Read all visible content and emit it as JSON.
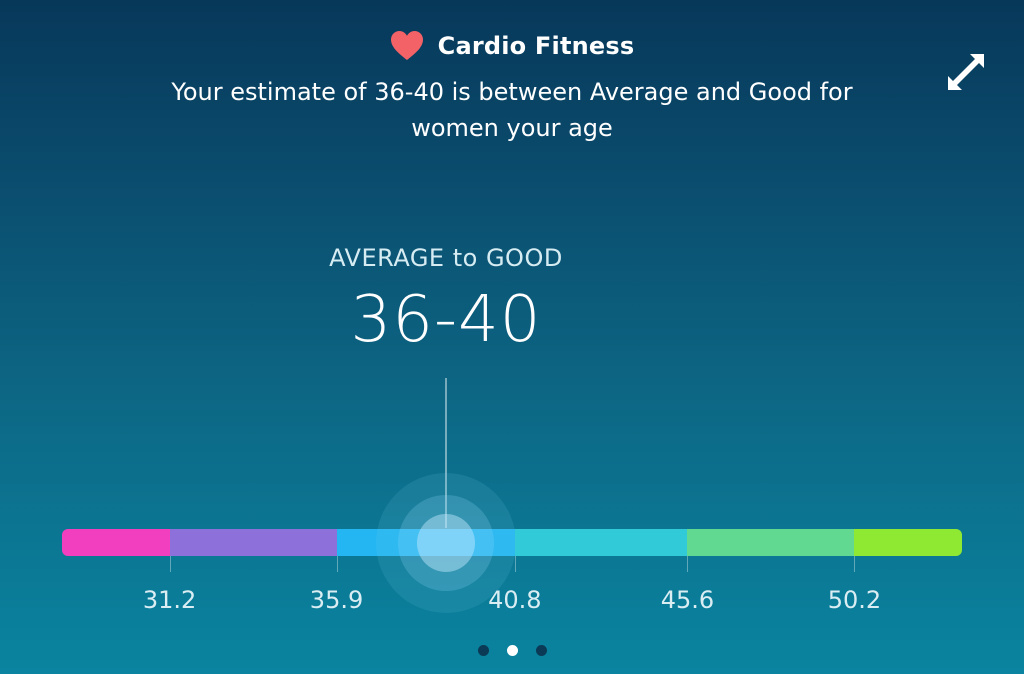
{
  "header": {
    "icon": "heart-icon",
    "title": "Cardio Fitness",
    "subtitle": "Your estimate of 36-40 is between Average and Good for women your age",
    "expand_icon": "expand-icon"
  },
  "estimate": {
    "category": "AVERAGE to GOOD",
    "range": "36-40"
  },
  "scale": {
    "min": 26.5,
    "max": 58.3,
    "marker_value": 38,
    "segments": [
      {
        "from": 26.5,
        "to": 30.3,
        "color": "#f23fc0"
      },
      {
        "from": 30.3,
        "to": 36.2,
        "color": "#8e70db"
      },
      {
        "from": 36.2,
        "to": 42.5,
        "color": "#24b6f2"
      },
      {
        "from": 42.5,
        "to": 48.6,
        "color": "#30cad8"
      },
      {
        "from": 48.6,
        "to": 54.5,
        "color": "#62d991"
      },
      {
        "from": 54.5,
        "to": 58.3,
        "color": "#8fe932"
      }
    ],
    "ticks": [
      "31.2",
      "35.9",
      "40.8",
      "45.6",
      "50.2"
    ]
  },
  "pagination": {
    "count": 3,
    "active": 1
  }
}
